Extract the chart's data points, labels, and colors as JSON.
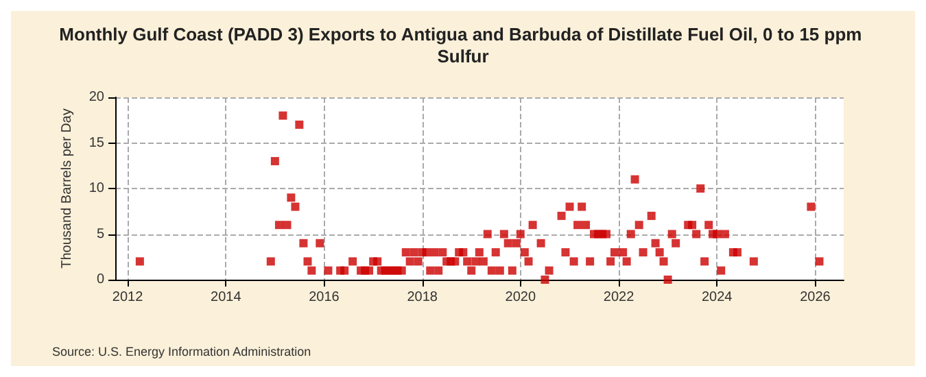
{
  "chart_data": {
    "type": "scatter",
    "title": "Monthly Gulf Coast (PADD 3) Exports to Antigua and Barbuda of Distillate Fuel Oil, 0 to 15 ppm Sulfur",
    "ylabel": "Thousand Barrels per Day",
    "annotations": [
      "Source: U.S. Energy Information Administration"
    ],
    "x": [
      "2012-04",
      "2014-12",
      "2015-01",
      "2015-02",
      "2015-03",
      "2015-04",
      "2015-05",
      "2015-06",
      "2015-07",
      "2015-08",
      "2015-09",
      "2015-10",
      "2015-12",
      "2016-02",
      "2016-05",
      "2016-06",
      "2016-08",
      "2016-10",
      "2016-11",
      "2016-12",
      "2017-01",
      "2017-02",
      "2017-03",
      "2017-04",
      "2017-05",
      "2017-06",
      "2017-07",
      "2017-08",
      "2017-09",
      "2017-10",
      "2017-11",
      "2017-12",
      "2018-01",
      "2018-02",
      "2018-03",
      "2018-04",
      "2018-05",
      "2018-06",
      "2018-07",
      "2018-08",
      "2018-09",
      "2018-10",
      "2018-11",
      "2018-12",
      "2019-01",
      "2019-02",
      "2019-03",
      "2019-04",
      "2019-05",
      "2019-06",
      "2019-07",
      "2019-08",
      "2019-09",
      "2019-10",
      "2019-11",
      "2019-12",
      "2020-01",
      "2020-02",
      "2020-03",
      "2020-04",
      "2020-06",
      "2020-07",
      "2020-08",
      "2020-11",
      "2020-12",
      "2021-01",
      "2021-02",
      "2021-03",
      "2021-04",
      "2021-05",
      "2021-06",
      "2021-07",
      "2021-08",
      "2021-09",
      "2021-10",
      "2021-11",
      "2021-12",
      "2022-02",
      "2022-03",
      "2022-04",
      "2022-05",
      "2022-06",
      "2022-07",
      "2022-09",
      "2022-10",
      "2022-11",
      "2022-12",
      "2023-01",
      "2023-02",
      "2023-03",
      "2023-06",
      "2023-07",
      "2023-08",
      "2023-09",
      "2023-10",
      "2023-11",
      "2023-12",
      "2024-01",
      "2024-02",
      "2024-03",
      "2024-05",
      "2024-06",
      "2024-10",
      "2025-12",
      "2026-02"
    ],
    "values": [
      2,
      2,
      13,
      6,
      18,
      6,
      9,
      8,
      17,
      4,
      2,
      1,
      4,
      1,
      1,
      1,
      2,
      1,
      1,
      1,
      2,
      2,
      1,
      1,
      1,
      1,
      1,
      1,
      3,
      2,
      3,
      2,
      3,
      3,
      1,
      3,
      1,
      3,
      2,
      2,
      2,
      3,
      3,
      2,
      1,
      2,
      3,
      2,
      5,
      1,
      3,
      1,
      5,
      4,
      1,
      4,
      5,
      3,
      2,
      6,
      4,
      0,
      1,
      7,
      3,
      8,
      2,
      6,
      8,
      6,
      2,
      5,
      5,
      5,
      5,
      2,
      3,
      3,
      2,
      5,
      11,
      6,
      3,
      7,
      4,
      3,
      2,
      0,
      5,
      4,
      6,
      6,
      5,
      10,
      2,
      6,
      5,
      5,
      1,
      5,
      3,
      3,
      2,
      8,
      2
    ],
    "color": "#cc0000",
    "marker": "square",
    "xlim": [
      "2011-10",
      "2026-08"
    ],
    "xticks": [
      "2012",
      "2014",
      "2016",
      "2018",
      "2020",
      "2022",
      "2024",
      "2026"
    ],
    "ylim": [
      0,
      20
    ],
    "yticks": [
      0,
      5,
      10,
      15,
      20
    ],
    "grid": true
  }
}
